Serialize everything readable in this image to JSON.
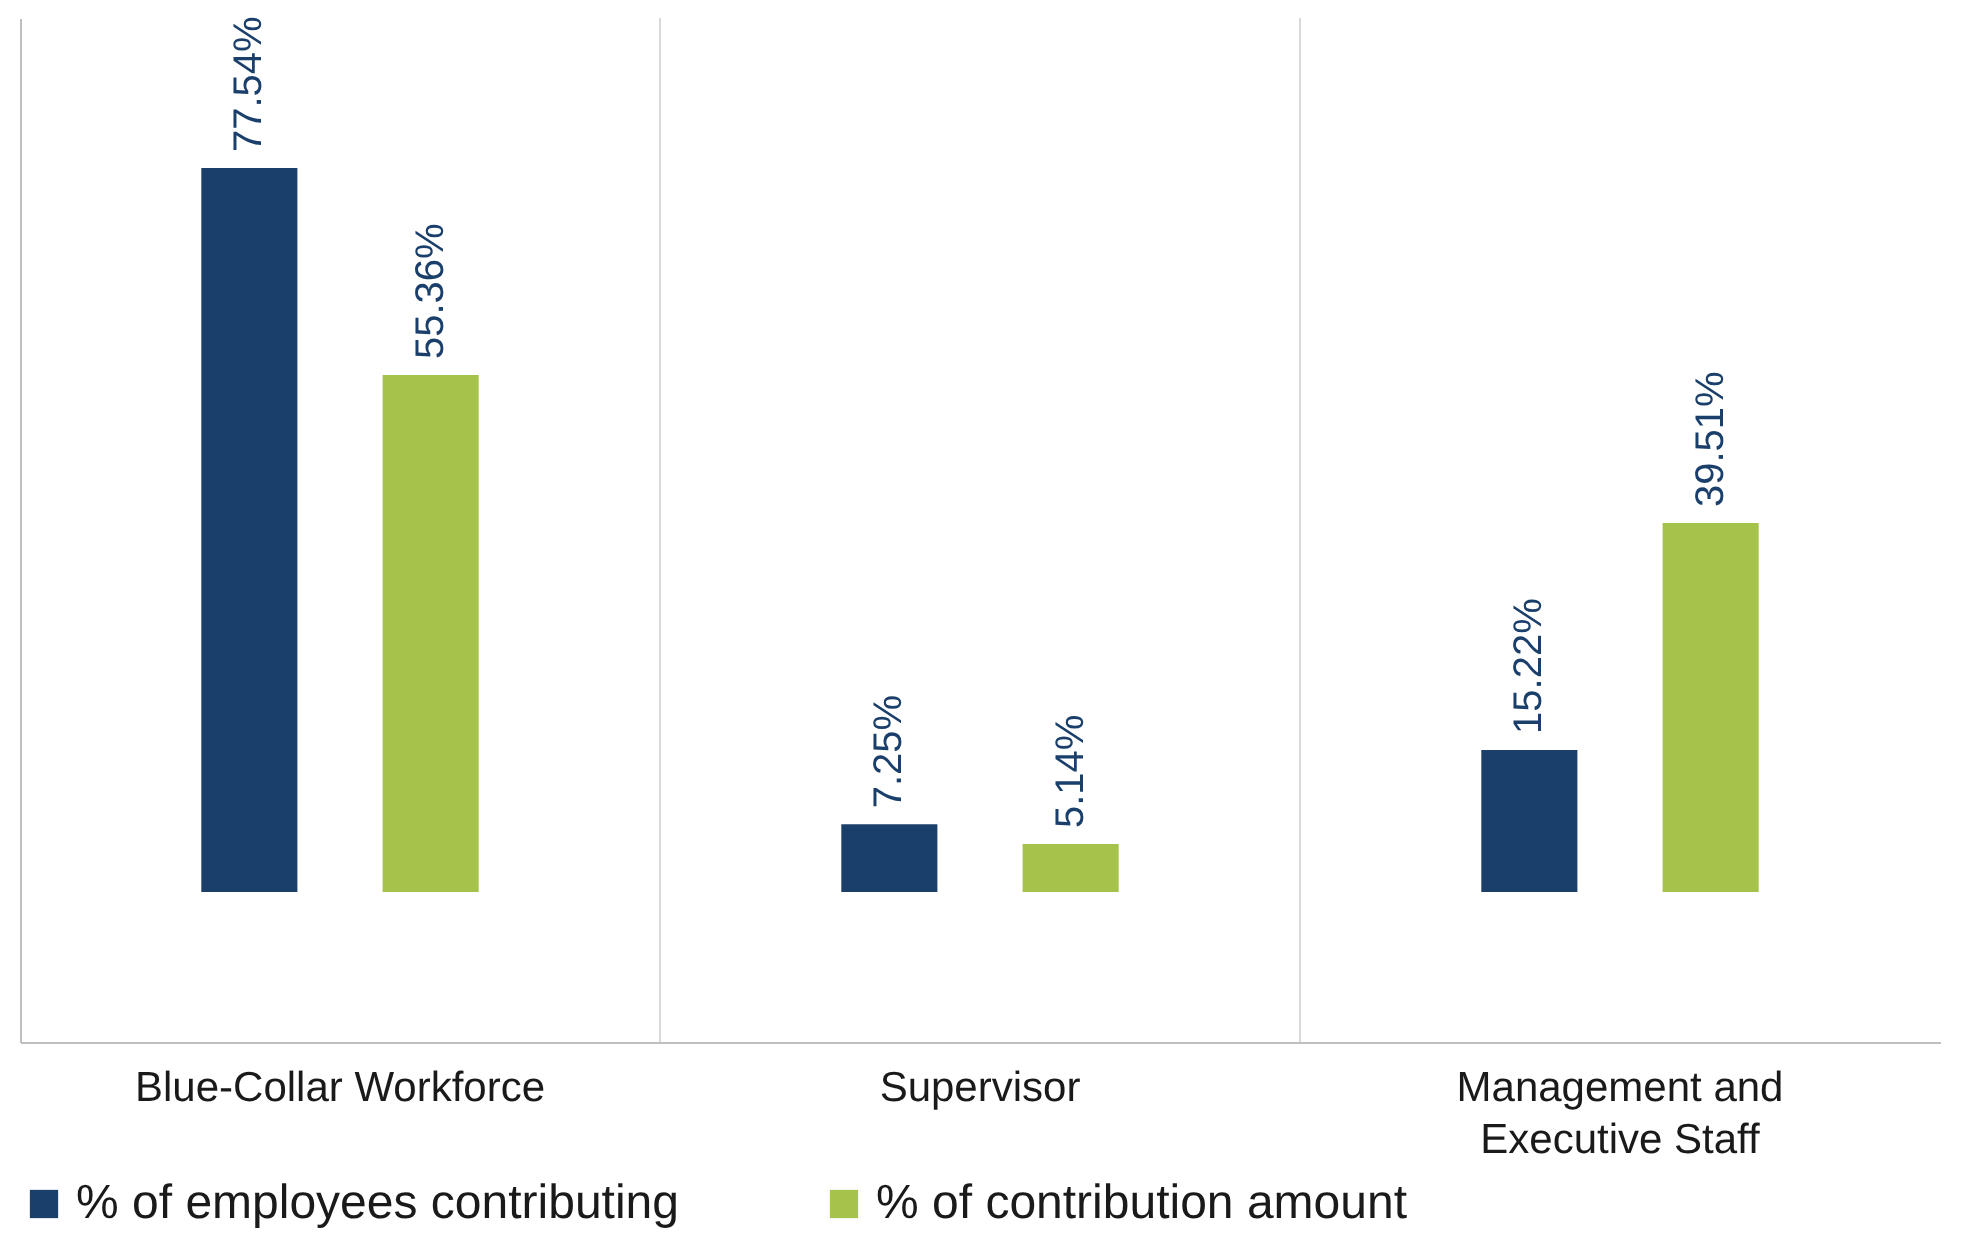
{
  "chart_data": {
    "type": "bar",
    "categories": [
      "Blue-Collar Workforce",
      "Supervisor",
      "Management and Executive Staff"
    ],
    "series": [
      {
        "name": "% of employees contributing",
        "color": "#1b3f6b",
        "values": [
          77.54,
          7.25,
          15.22
        ],
        "value_labels": [
          "77.54%",
          "7.25%",
          "15.22%"
        ]
      },
      {
        "name": "% of contribution amount",
        "color": "#a5c34a",
        "values": [
          55.36,
          5.14,
          39.51
        ],
        "value_labels": [
          "55.36%",
          "5.14%",
          "39.51%"
        ]
      }
    ],
    "tick_labels": "x",
    "legend": "bottom"
  }
}
